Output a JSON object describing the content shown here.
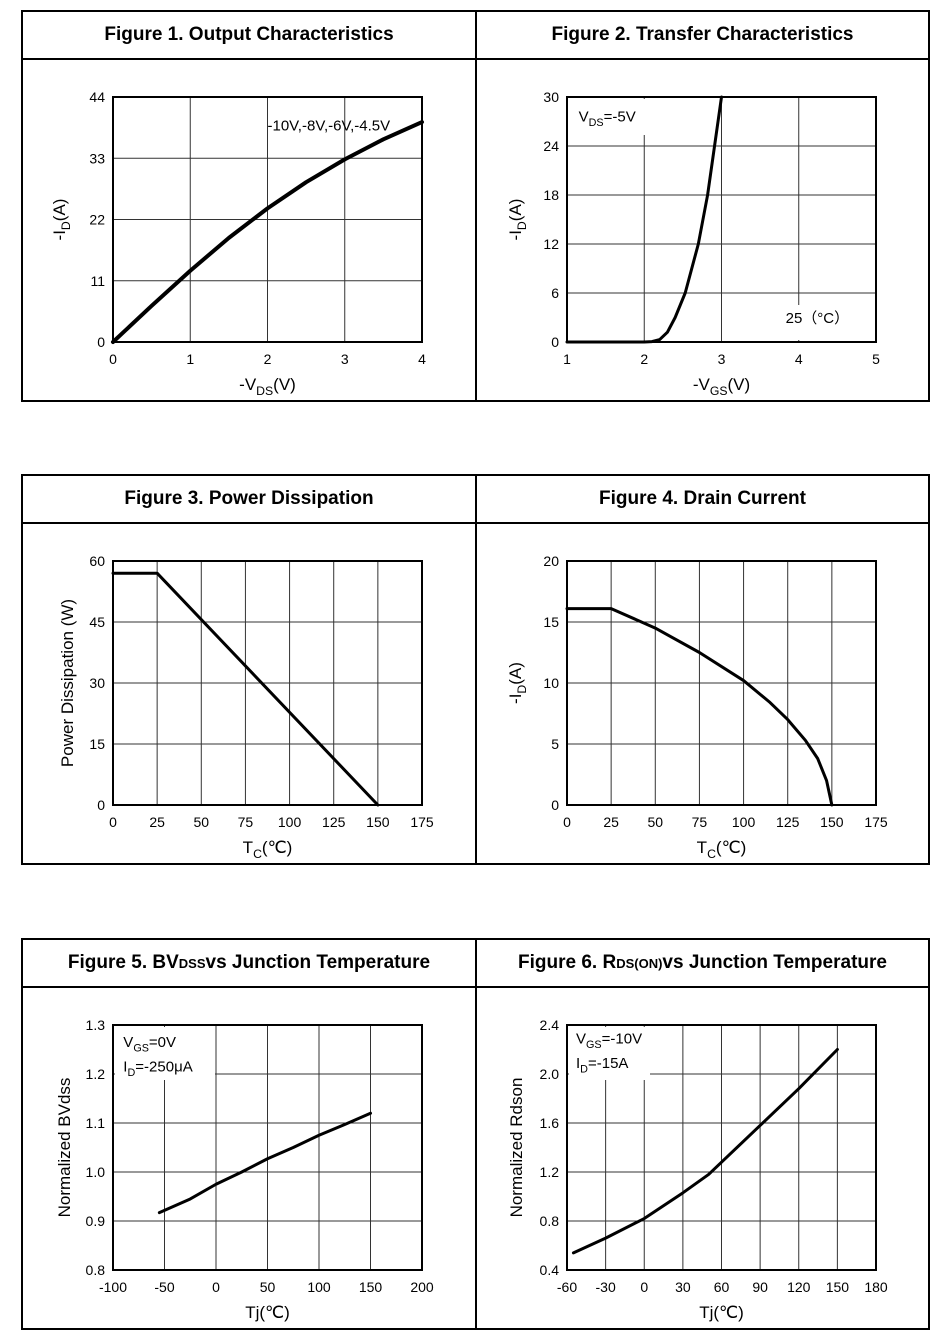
{
  "chart_data": [
    {
      "type": "line",
      "title": {
        "pre": "Figure 1. Output Characteristics",
        "sub": "",
        "post": ""
      },
      "xlabel": {
        "pre": "-V",
        "sub": "DS",
        "post": "(V)"
      },
      "ylabel": {
        "pre": "-I",
        "sub": "D",
        "post": "(A)"
      },
      "xlim": [
        0,
        4
      ],
      "ylim": [
        0,
        44
      ],
      "xticks": [
        0,
        1,
        2,
        3,
        4
      ],
      "yticks": [
        0,
        11,
        22,
        33,
        44
      ],
      "grid": true,
      "annotations": [
        {
          "text": "-10V,-8V,-6V,-4.5V",
          "x": 2,
          "y": 38
        }
      ],
      "series": [
        {
          "x": [
            0,
            0.5,
            1,
            1.5,
            2,
            2.5,
            3,
            3.5,
            4
          ],
          "y": [
            0,
            6.5,
            12.8,
            18.7,
            24,
            28.7,
            32.8,
            36.4,
            39.5
          ]
        }
      ]
    },
    {
      "type": "line",
      "title": {
        "pre": "Figure 2. Transfer Characteristics",
        "sub": "",
        "post": ""
      },
      "xlabel": {
        "pre": "-V",
        "sub": "GS",
        "post": "(V)"
      },
      "ylabel": {
        "pre": "-I",
        "sub": "D",
        "post": "(A)"
      },
      "xlim": [
        1,
        5
      ],
      "ylim": [
        0,
        30
      ],
      "xticks": [
        1,
        2,
        3,
        4,
        5
      ],
      "yticks": [
        0,
        6,
        12,
        18,
        24,
        30
      ],
      "grid": true,
      "annotations": [
        {
          "pre": "V",
          "sub": "DS",
          "post": "=-5V",
          "x": 1.15,
          "y": 27
        },
        {
          "text": "25（°C）",
          "x": 3.83,
          "y": 2.3
        }
      ],
      "series": [
        {
          "x": [
            1,
            2,
            2.1,
            2.2,
            2.3,
            2.4,
            2.53,
            2.7,
            2.82,
            2.91,
            3.0
          ],
          "y": [
            0,
            0,
            0.05,
            0.3,
            1.2,
            3,
            6,
            12,
            18,
            24,
            30
          ]
        }
      ]
    },
    {
      "type": "line",
      "title": {
        "pre": "Figure 3. Power Dissipation",
        "sub": "",
        "post": ""
      },
      "xlabel": {
        "pre": "T",
        "sub": "C",
        "post": "(℃)"
      },
      "ylabel": {
        "pre": "Power Dissipation (W)",
        "sub": "",
        "post": ""
      },
      "xlim": [
        0,
        175
      ],
      "ylim": [
        0,
        60
      ],
      "xticks": [
        0,
        25,
        50,
        75,
        100,
        125,
        150,
        175
      ],
      "yticks": [
        0,
        15,
        30,
        45,
        60
      ],
      "grid": true,
      "annotations": [],
      "series": [
        {
          "x": [
            0,
            25,
            150
          ],
          "y": [
            57,
            57,
            0
          ]
        }
      ]
    },
    {
      "type": "line",
      "title": {
        "pre": "Figure 4. Drain Current",
        "sub": "",
        "post": ""
      },
      "xlabel": {
        "pre": "T",
        "sub": "C",
        "post": "(℃)"
      },
      "ylabel": {
        "pre": "-I",
        "sub": "D",
        "post": "(A)"
      },
      "xlim": [
        0,
        175
      ],
      "ylim": [
        0,
        20
      ],
      "xticks": [
        0,
        25,
        50,
        75,
        100,
        125,
        150,
        175
      ],
      "yticks": [
        0,
        5,
        10,
        15,
        20
      ],
      "grid": true,
      "annotations": [],
      "series": [
        {
          "x": [
            0,
            25,
            50,
            75,
            100,
            115,
            125,
            135,
            142,
            147,
            150
          ],
          "y": [
            16.1,
            16.1,
            14.5,
            12.5,
            10.2,
            8.4,
            7,
            5.3,
            3.8,
            2,
            0
          ]
        }
      ]
    },
    {
      "type": "line",
      "title": {
        "pre": "Figure 5. BV",
        "sub": "DSS",
        "post": " vs Junction Temperature"
      },
      "xlabel": {
        "pre": "Tj(℃)",
        "sub": "",
        "post": ""
      },
      "ylabel": {
        "pre": "Normalized  BVdss",
        "sub": "",
        "post": ""
      },
      "xlim": [
        -100,
        200
      ],
      "ylim": [
        0.8,
        1.3
      ],
      "xticks": [
        -100,
        -50,
        0,
        50,
        100,
        150,
        200
      ],
      "ytick_labels": [
        "0.8",
        "0.9",
        "1.0",
        "1.1",
        "1.2",
        "1.3"
      ],
      "yticks": [
        0.8,
        0.9,
        1.0,
        1.1,
        1.2,
        1.3
      ],
      "grid": true,
      "annotations": [
        {
          "pre": "V",
          "sub": "GS",
          "post": "=0V",
          "x": -90,
          "y": 1.255
        },
        {
          "pre": "I",
          "sub": "D",
          "post": "=-250μA",
          "x": -90,
          "y": 1.205
        }
      ],
      "series": [
        {
          "x": [
            -55,
            -25,
            0,
            25,
            50,
            75,
            100,
            125,
            150
          ],
          "y": [
            0.917,
            0.945,
            0.975,
            1.0,
            1.027,
            1.05,
            1.075,
            1.097,
            1.12
          ]
        }
      ]
    },
    {
      "type": "line",
      "title": {
        "pre": "Figure 6. R",
        "sub": "DS(ON)",
        "post": " vs Junction Temperature"
      },
      "xlabel": {
        "pre": "Tj(℃)",
        "sub": "",
        "post": ""
      },
      "ylabel": {
        "pre": "Normalized  Rdson",
        "sub": "",
        "post": ""
      },
      "xlim": [
        -60,
        180
      ],
      "ylim": [
        0.4,
        2.4
      ],
      "xticks": [
        -60,
        -30,
        0,
        30,
        60,
        90,
        120,
        150,
        180
      ],
      "ytick_labels": [
        "0.4",
        "0.8",
        "1.2",
        "1.6",
        "2.0",
        "2.4"
      ],
      "yticks": [
        0.4,
        0.8,
        1.2,
        1.6,
        2.0,
        2.4
      ],
      "grid": true,
      "annotations": [
        {
          "pre": "V",
          "sub": "GS",
          "post": "=-10V",
          "x": -53,
          "y": 2.25
        },
        {
          "pre": "I",
          "sub": "D",
          "post": "=-15A",
          "x": -53,
          "y": 2.05
        }
      ],
      "series": [
        {
          "x": [
            -55,
            -30,
            0,
            30,
            50,
            60,
            90,
            120,
            150
          ],
          "y": [
            0.54,
            0.66,
            0.82,
            1.03,
            1.18,
            1.28,
            1.58,
            1.88,
            2.2
          ]
        }
      ]
    }
  ]
}
